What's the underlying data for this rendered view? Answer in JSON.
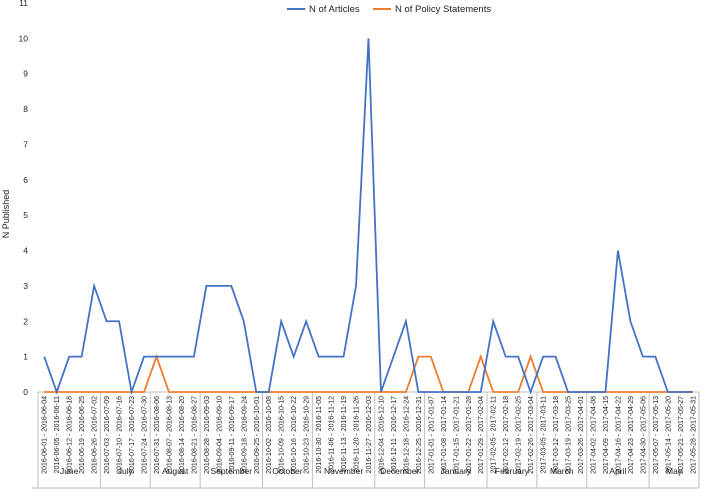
{
  "chart_data": {
    "type": "line",
    "title": "",
    "xlabel": "",
    "ylabel": "N Published",
    "ylim": [
      0,
      11
    ],
    "yticks": [
      "0",
      "1",
      "2",
      "3",
      "4",
      "5",
      "6",
      "7",
      "8",
      "9",
      "10",
      "11"
    ],
    "grid": false,
    "legend_position": "top",
    "categories": [
      "2016-06-01 - 2016-06-04",
      "2016-06-05 - 2016-06-11",
      "2016-06-12 - 2016-06-18",
      "2016-06-19 - 2016-06-25",
      "2016-06-26 - 2016-07-02",
      "2016-07-03 - 2016-07-09",
      "2016-07-10 - 2016-07-16",
      "2016-07-17 - 2016-07-23",
      "2016-07-24 - 2016-07-30",
      "2016-07-31 - 2016-08-06",
      "2016-08-07 - 2016-08-13",
      "2016-08-14 - 2016-08-20",
      "2016-08-21 - 2016-08-27",
      "2016-08-28 - 2016-09-03",
      "2016-09-04 - 2016-09-10",
      "2016-09-11 - 2016-09-17",
      "2016-09-18 - 2016-09-24",
      "2016-09-25 - 2016-10-01",
      "2016-10-02 - 2016-10-08",
      "2016-10-09 - 2016-10-15",
      "2016-10-16 - 2016-10-22",
      "2016-10-23 - 2016-10-29",
      "2016-10-30 - 2016-11-05",
      "2016-11-06 - 2016-11-12",
      "2016-11-13 - 2016-11-19",
      "2016-11-20 - 2016-11-26",
      "2016-11-27 - 2016-12-03",
      "2016-12-04 - 2016-12-10",
      "2016-12-11 - 2016-12-17",
      "2016-12-18 - 2016-12-24",
      "2016-12-25 - 2016-12-31",
      "2017-01-01 - 2017-01-07",
      "2017-01-08 - 2017-01-14",
      "2017-01-15 - 2017-01-21",
      "2017-01-22 - 2017-01-28",
      "2017-01-29 - 2017-02-04",
      "2017-02-05 - 2017-02-11",
      "2017-02-12 - 2017-02-18",
      "2017-02-19 - 2017-02-25",
      "2017-02-26 - 2017-03-04",
      "2017-03-05 - 2017-03-11",
      "2017-03-12 - 2017-03-18",
      "2017-03-19 - 2017-03-25",
      "2017-03-26 - 2017-04-01",
      "2017-04-02 - 2017-04-08",
      "2017-04-09 - 2017-04-15",
      "2017-04-16 - 2017-04-22",
      "2017-04-23 - 2017-04-29",
      "2017-04-30 - 2017-05-06",
      "2017-05-07 - 2017-05-13",
      "2017-05-14 - 2017-05-20",
      "2017-05-21 - 2017-05-27",
      "2017-05-28 - 2017-05-31"
    ],
    "months": [
      {
        "label": "June",
        "start": 0,
        "end": 4
      },
      {
        "label": "July",
        "start": 5,
        "end": 8
      },
      {
        "label": "August",
        "start": 9,
        "end": 12
      },
      {
        "label": "September",
        "start": 13,
        "end": 17
      },
      {
        "label": "October",
        "start": 18,
        "end": 21
      },
      {
        "label": "November",
        "start": 22,
        "end": 26
      },
      {
        "label": "December",
        "start": 27,
        "end": 30
      },
      {
        "label": "January",
        "start": 31,
        "end": 35
      },
      {
        "label": "February",
        "start": 36,
        "end": 39
      },
      {
        "label": "March",
        "start": 40,
        "end": 43
      },
      {
        "label": "April",
        "start": 44,
        "end": 48
      },
      {
        "label": "May",
        "start": 49,
        "end": 52
      }
    ],
    "series": [
      {
        "name": "N of Articles",
        "color": "#4472c4",
        "values": [
          1,
          0,
          1,
          1,
          3,
          2,
          2,
          0,
          1,
          1,
          1,
          1,
          1,
          3,
          3,
          3,
          2,
          0,
          0,
          2,
          1,
          2,
          1,
          1,
          1,
          3,
          10,
          0,
          1,
          2,
          0,
          0,
          0,
          0,
          0,
          0,
          2,
          1,
          1,
          0,
          1,
          1,
          0,
          0,
          0,
          0,
          4,
          2,
          1,
          1,
          0,
          0,
          0
        ]
      },
      {
        "name": "N of Policy Statements",
        "color": "#ed7d31",
        "values": [
          0,
          0,
          0,
          0,
          0,
          0,
          0,
          0,
          0,
          1,
          0,
          0,
          0,
          0,
          0,
          0,
          0,
          0,
          0,
          0,
          0,
          0,
          0,
          0,
          0,
          0,
          0,
          0,
          0,
          0,
          1,
          1,
          0,
          0,
          0,
          1,
          0,
          0,
          0,
          1,
          0,
          0,
          0,
          0,
          0,
          0,
          0,
          0,
          0,
          0,
          0,
          0,
          0
        ]
      }
    ]
  }
}
